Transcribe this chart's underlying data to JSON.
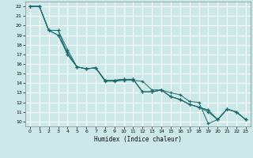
{
  "title": "",
  "xlabel": "Humidex (Indice chaleur)",
  "ylabel": "",
  "xlim": [
    -0.5,
    23.5
  ],
  "ylim": [
    9.5,
    22.5
  ],
  "xticks": [
    0,
    1,
    2,
    3,
    4,
    5,
    6,
    7,
    8,
    9,
    10,
    11,
    12,
    13,
    14,
    15,
    16,
    17,
    18,
    19,
    20,
    21,
    22,
    23
  ],
  "yticks": [
    10,
    11,
    12,
    13,
    14,
    15,
    16,
    17,
    18,
    19,
    20,
    21,
    22
  ],
  "bg_color": "#cce8e8",
  "line_color": "#1a6b6b",
  "grid_color": "#ffffff",
  "series1": {
    "x": [
      0,
      1,
      2,
      3,
      4,
      5,
      6,
      7,
      8,
      9,
      10,
      11,
      12,
      13,
      14,
      15,
      16,
      17,
      18,
      19,
      20,
      21,
      22,
      23
    ],
    "y": [
      22,
      22,
      19.5,
      19.5,
      17.0,
      15.7,
      15.5,
      15.6,
      14.2,
      14.2,
      14.3,
      14.3,
      14.2,
      13.3,
      13.3,
      13.0,
      12.8,
      12.1,
      12.0,
      9.8,
      10.2,
      11.3,
      11.0,
      10.2
    ]
  },
  "series2": {
    "x": [
      0,
      1,
      2,
      3,
      4,
      5,
      6,
      7,
      8,
      9,
      10,
      11,
      12,
      13,
      14,
      15,
      16,
      17,
      18,
      19,
      20,
      21,
      22,
      23
    ],
    "y": [
      22,
      22,
      19.5,
      19.5,
      17.5,
      15.7,
      15.5,
      15.6,
      14.3,
      14.3,
      14.4,
      14.4,
      13.1,
      13.1,
      13.3,
      12.6,
      12.3,
      11.8,
      11.5,
      11.2,
      10.2,
      11.3,
      11.0,
      10.2
    ]
  },
  "series3": {
    "x": [
      0,
      1,
      2,
      3,
      4,
      5,
      6,
      7,
      8,
      9,
      10,
      11,
      12,
      13,
      14,
      15,
      16,
      17,
      18,
      19,
      20,
      21,
      22,
      23
    ],
    "y": [
      22,
      22,
      19.5,
      19.0,
      17.2,
      15.7,
      15.5,
      15.6,
      14.3,
      14.3,
      14.4,
      14.4,
      13.1,
      13.1,
      13.3,
      12.6,
      12.3,
      11.8,
      11.5,
      11.0,
      10.2,
      11.3,
      11.0,
      10.2
    ]
  },
  "series4": {
    "x": [
      0,
      1,
      2,
      3,
      4,
      5,
      6,
      7,
      8,
      9,
      10,
      11,
      12,
      13,
      14,
      15,
      16,
      17,
      18,
      19,
      20,
      21,
      22,
      23
    ],
    "y": [
      22,
      22,
      19.5,
      19.0,
      17.0,
      15.7,
      15.5,
      15.6,
      14.3,
      14.3,
      14.4,
      14.4,
      13.1,
      13.1,
      13.3,
      12.6,
      12.3,
      11.8,
      11.5,
      11.2,
      10.2,
      11.3,
      11.0,
      10.2
    ]
  }
}
